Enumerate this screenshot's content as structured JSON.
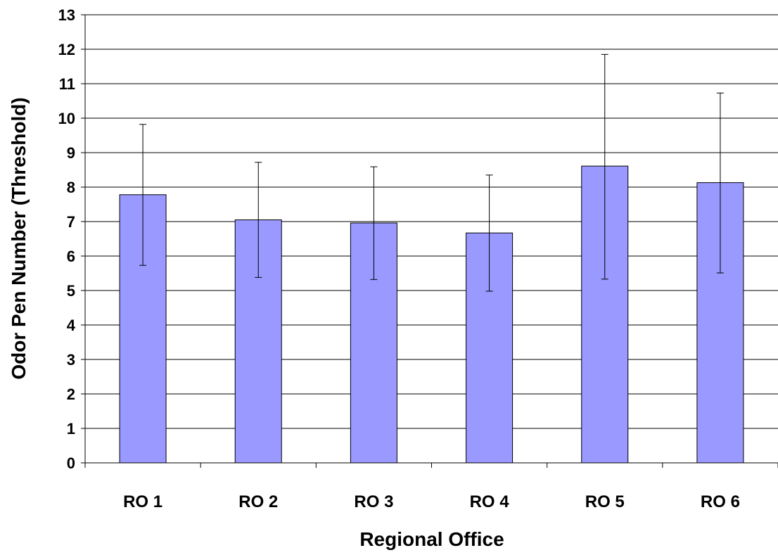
{
  "chart_data": {
    "type": "bar",
    "title": "",
    "xlabel": "Regional Office",
    "ylabel": "Odor Pen Number (Threshold)",
    "categories": [
      "RO 1",
      "RO 2",
      "RO 3",
      "RO 4",
      "RO 5",
      "RO 6"
    ],
    "values": [
      7.78,
      7.05,
      6.96,
      6.67,
      8.61,
      8.13
    ],
    "error_low": [
      5.73,
      5.38,
      5.32,
      4.98,
      5.33,
      5.51
    ],
    "error_high": [
      9.82,
      8.72,
      8.59,
      8.35,
      11.85,
      10.73
    ],
    "ylim": [
      0,
      13
    ],
    "yticks": [
      0,
      1,
      2,
      3,
      4,
      5,
      6,
      7,
      8,
      9,
      10,
      11,
      12,
      13
    ],
    "grid": true,
    "legend": false,
    "colors": {
      "bar_fill": "#9999ff",
      "bar_stroke": "#000000",
      "grid": "#000000",
      "axis": "#000000"
    }
  }
}
